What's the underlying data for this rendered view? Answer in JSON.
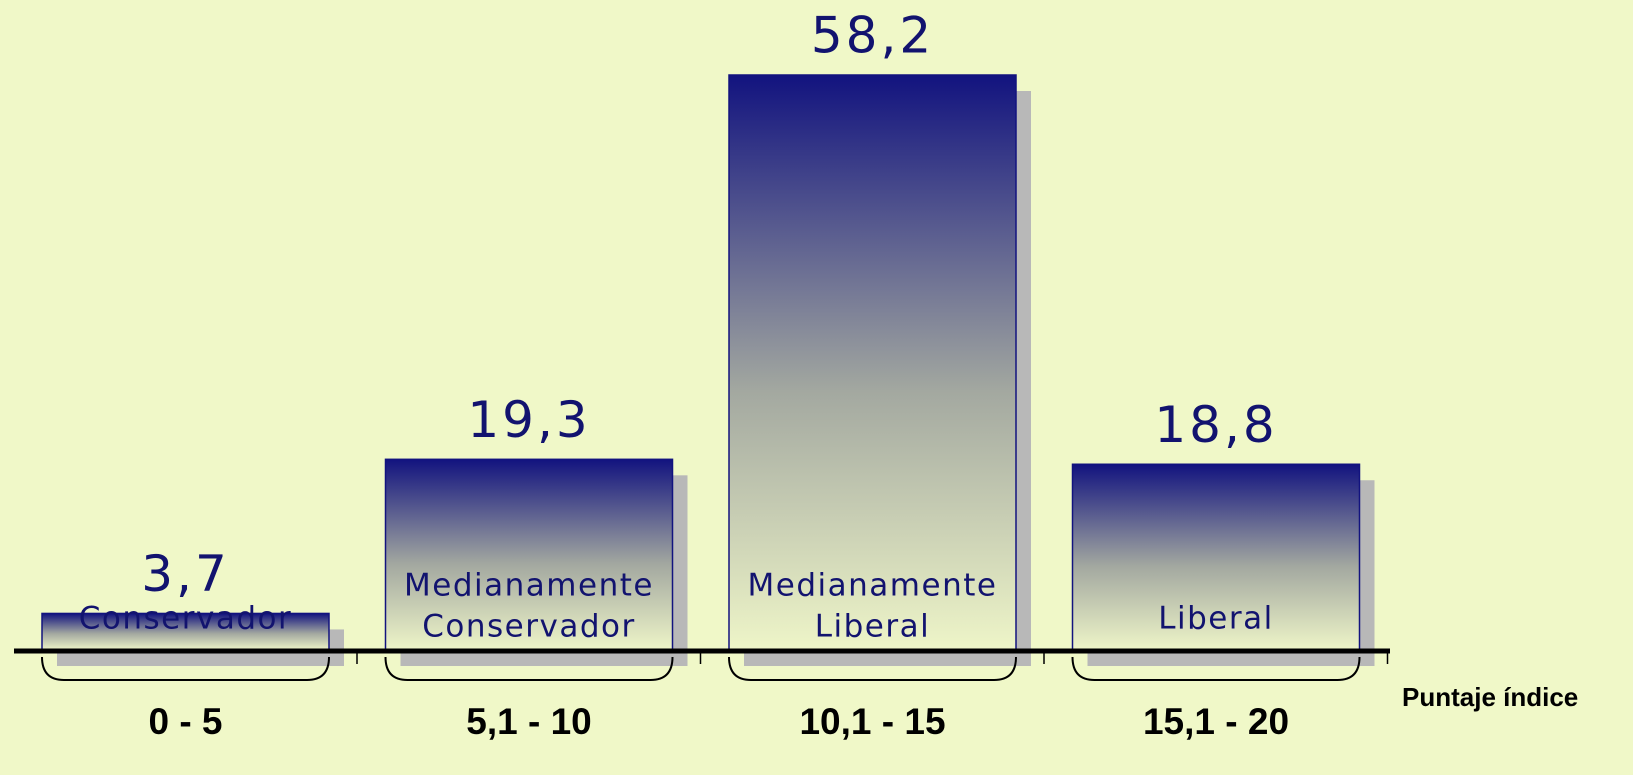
{
  "chart_data": {
    "type": "bar",
    "categories": [
      "0 - 5",
      "5,1 - 10",
      "10,1 - 15",
      "15,1 - 20"
    ],
    "values": [
      3.7,
      19.3,
      58.2,
      18.8
    ],
    "value_labels": [
      "3,7",
      "19,3",
      "58,2",
      "18,8"
    ],
    "bar_labels": [
      [
        "Conservador"
      ],
      [
        "Medianamente",
        "Conservador"
      ],
      [
        "Medianamente",
        "Liberal"
      ],
      [
        "Liberal"
      ]
    ],
    "x_label": "Puntaje índice",
    "color": "#12137f"
  }
}
